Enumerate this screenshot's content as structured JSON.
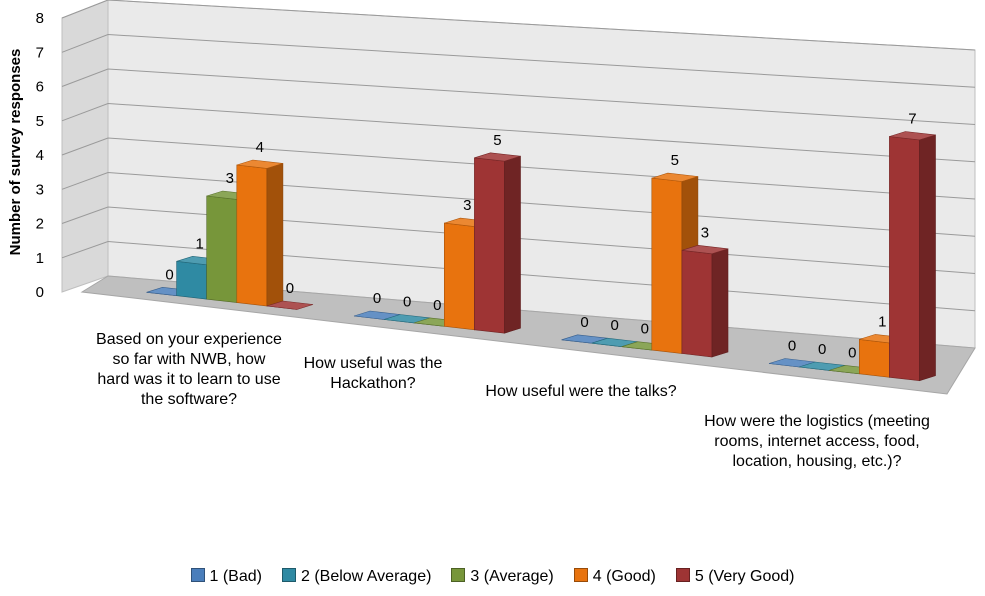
{
  "chart_data": {
    "type": "bar",
    "ylabel": "Number of survey responses",
    "ylim": [
      0,
      8
    ],
    "yticks": [
      0,
      1,
      2,
      3,
      4,
      5,
      6,
      7,
      8
    ],
    "grid": true,
    "legend_position": "bottom",
    "categories": [
      "Based on your experience so far with NWB, how hard was it to learn to use the software?",
      "How useful was the Hackathon?",
      "How useful were the talks?",
      "How were the logistics (meeting rooms, internet access, food, location, housing, etc.)?"
    ],
    "series": [
      {
        "name": "1 (Bad)",
        "values": [
          0,
          0,
          0,
          0
        ],
        "color": "#4a7ebb"
      },
      {
        "name": "2 (Below Average)",
        "values": [
          1,
          0,
          0,
          0
        ],
        "color": "#2f8aa3"
      },
      {
        "name": "3 (Average)",
        "values": [
          3,
          0,
          0,
          0
        ],
        "color": "#77963a"
      },
      {
        "name": "4 (Good)",
        "values": [
          4,
          3,
          5,
          1
        ],
        "color": "#e8730e"
      },
      {
        "name": "5 (Very Good)",
        "values": [
          0,
          5,
          3,
          7
        ],
        "color": "#9e3434"
      }
    ]
  }
}
